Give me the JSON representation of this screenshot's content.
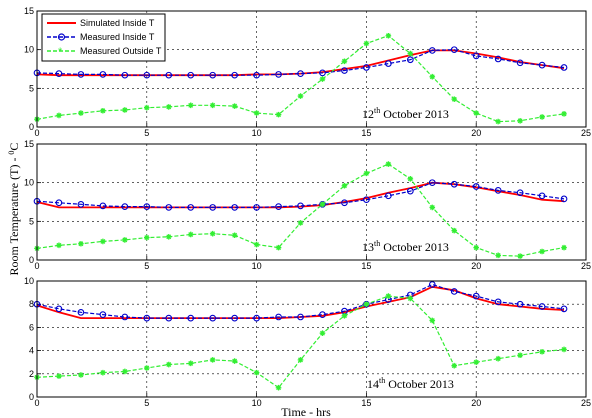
{
  "figure": {
    "ylabel_main": "Room Temperature (T) - ",
    "ylabel_sup": "0",
    "ylabel_unit": "C",
    "xlabel": "Time - hrs"
  },
  "legend": [
    "Simulated Inside T",
    "Measured Inside T",
    "Measured Outside T"
  ],
  "colors": {
    "simulated": "#ff0000",
    "measured_inside": "#0000cc",
    "measured_outside": "#33ee33"
  },
  "chart_data": [
    {
      "type": "line",
      "annotation": {
        "day": "12",
        "sup": "th",
        "rest": " October 2013"
      },
      "xlim": [
        0,
        25
      ],
      "ylim": [
        0,
        15
      ],
      "xticks": [
        0,
        5,
        10,
        15,
        20,
        25
      ],
      "yticks": [
        0,
        5,
        10,
        15
      ],
      "xtick_labels": [
        "0",
        "5",
        "10",
        "15",
        "20",
        "25"
      ],
      "ytick_labels": [
        "0",
        "5",
        "10",
        "15"
      ],
      "grid": true,
      "legend_position": "top-left",
      "series": [
        {
          "name": "Simulated Inside T",
          "x": [
            0,
            1,
            2,
            3,
            4,
            5,
            6,
            7,
            8,
            9,
            10,
            11,
            12,
            13,
            14,
            15,
            16,
            17,
            18,
            19,
            20,
            21,
            22,
            23,
            24
          ],
          "y": [
            6.8,
            6.7,
            6.7,
            6.7,
            6.7,
            6.7,
            6.7,
            6.7,
            6.7,
            6.7,
            6.8,
            6.8,
            6.9,
            7.1,
            7.5,
            7.9,
            8.6,
            9.3,
            9.9,
            9.9,
            9.5,
            9.0,
            8.4,
            8.0,
            7.6
          ]
        },
        {
          "name": "Measured Inside T",
          "x": [
            0,
            1,
            2,
            3,
            4,
            5,
            6,
            7,
            8,
            9,
            10,
            11,
            12,
            13,
            14,
            15,
            16,
            17,
            18,
            19,
            20,
            21,
            22,
            23,
            24
          ],
          "y": [
            7.0,
            6.9,
            6.8,
            6.8,
            6.7,
            6.7,
            6.7,
            6.7,
            6.7,
            6.7,
            6.7,
            6.8,
            6.9,
            7.0,
            7.3,
            7.7,
            8.2,
            8.7,
            9.9,
            10.0,
            9.2,
            8.8,
            8.3,
            8.0,
            7.7
          ]
        },
        {
          "name": "Measured Outside T",
          "x": [
            0,
            1,
            2,
            3,
            4,
            5,
            6,
            7,
            8,
            9,
            10,
            11,
            12,
            13,
            14,
            15,
            16,
            17,
            18,
            19,
            20,
            21,
            22,
            23,
            24
          ],
          "y": [
            1.0,
            1.5,
            1.8,
            2.1,
            2.2,
            2.5,
            2.6,
            2.8,
            2.8,
            2.7,
            1.8,
            1.6,
            4.0,
            6.2,
            8.5,
            10.8,
            11.8,
            9.5,
            6.5,
            3.6,
            1.8,
            0.7,
            0.8,
            1.3,
            1.7
          ]
        }
      ]
    },
    {
      "type": "line",
      "annotation": {
        "day": "13",
        "sup": "th",
        "rest": " October 2013"
      },
      "xlim": [
        0,
        25
      ],
      "ylim": [
        0,
        15
      ],
      "xticks": [
        0,
        5,
        10,
        15,
        20,
        25
      ],
      "yticks": [
        0,
        5,
        10,
        15
      ],
      "xtick_labels": [
        "0",
        "5",
        "10",
        "15",
        "20",
        "25"
      ],
      "ytick_labels": [
        "0",
        "5",
        "10",
        "15"
      ],
      "grid": true,
      "series": [
        {
          "name": "Simulated Inside T",
          "x": [
            0,
            1,
            2,
            3,
            4,
            5,
            6,
            7,
            8,
            9,
            10,
            11,
            12,
            13,
            14,
            15,
            16,
            17,
            18,
            19,
            20,
            21,
            22,
            23,
            24
          ],
          "y": [
            7.5,
            6.8,
            6.8,
            6.8,
            6.8,
            6.8,
            6.8,
            6.8,
            6.8,
            6.8,
            6.8,
            6.8,
            6.9,
            7.1,
            7.5,
            8.0,
            8.7,
            9.3,
            10.0,
            9.8,
            9.4,
            8.9,
            8.4,
            7.8,
            7.6
          ]
        },
        {
          "name": "Measured Inside T",
          "x": [
            0,
            1,
            2,
            3,
            4,
            5,
            6,
            7,
            8,
            9,
            10,
            11,
            12,
            13,
            14,
            15,
            16,
            17,
            18,
            19,
            20,
            21,
            22,
            23,
            24
          ],
          "y": [
            7.6,
            7.4,
            7.2,
            7.0,
            6.9,
            6.9,
            6.8,
            6.8,
            6.8,
            6.8,
            6.8,
            6.9,
            7.0,
            7.2,
            7.4,
            7.8,
            8.3,
            8.9,
            10.0,
            9.8,
            9.5,
            9.0,
            8.7,
            8.3,
            7.9
          ]
        },
        {
          "name": "Measured Outside T",
          "x": [
            0,
            1,
            2,
            3,
            4,
            5,
            6,
            7,
            8,
            9,
            10,
            11,
            12,
            13,
            14,
            15,
            16,
            17,
            18,
            19,
            20,
            21,
            22,
            23,
            24
          ],
          "y": [
            1.5,
            1.9,
            2.1,
            2.4,
            2.6,
            2.9,
            3.0,
            3.3,
            3.4,
            3.2,
            2.0,
            1.6,
            4.8,
            7.2,
            9.6,
            11.2,
            12.4,
            10.5,
            6.8,
            3.8,
            1.6,
            0.6,
            0.5,
            1.1,
            1.6
          ]
        }
      ]
    },
    {
      "type": "line",
      "annotation": {
        "day": "14",
        "sup": "th",
        "rest": " October 2013"
      },
      "xlim": [
        0,
        25
      ],
      "ylim": [
        0,
        10
      ],
      "xticks": [
        0,
        5,
        10,
        15,
        20,
        25
      ],
      "yticks": [
        0,
        2,
        4,
        6,
        8,
        10
      ],
      "xtick_labels": [
        "0",
        "5",
        "10",
        "15",
        "20",
        "25"
      ],
      "ytick_labels": [
        "0",
        "2",
        "4",
        "6",
        "8",
        "10"
      ],
      "grid": true,
      "series": [
        {
          "name": "Simulated Inside T",
          "x": [
            0,
            1,
            2,
            3,
            4,
            5,
            6,
            7,
            8,
            9,
            10,
            11,
            12,
            13,
            14,
            15,
            16,
            17,
            18,
            19,
            20,
            21,
            22,
            23,
            24
          ],
          "y": [
            7.9,
            7.3,
            6.8,
            6.8,
            6.8,
            6.8,
            6.8,
            6.8,
            6.8,
            6.8,
            6.8,
            6.8,
            6.9,
            7.0,
            7.3,
            7.8,
            8.2,
            8.6,
            9.5,
            9.2,
            8.5,
            8.0,
            7.8,
            7.6,
            7.5
          ]
        },
        {
          "name": "Measured Inside T",
          "x": [
            0,
            1,
            2,
            3,
            4,
            5,
            6,
            7,
            8,
            9,
            10,
            11,
            12,
            13,
            14,
            15,
            16,
            17,
            18,
            19,
            20,
            21,
            22,
            23,
            24
          ],
          "y": [
            8.0,
            7.6,
            7.3,
            7.1,
            6.9,
            6.8,
            6.8,
            6.8,
            6.8,
            6.8,
            6.8,
            6.9,
            6.9,
            7.1,
            7.4,
            8.0,
            8.4,
            8.8,
            9.7,
            9.1,
            8.7,
            8.2,
            8.0,
            7.8,
            7.6
          ]
        },
        {
          "name": "Measured Outside T",
          "x": [
            0,
            1,
            2,
            3,
            4,
            5,
            6,
            7,
            8,
            9,
            10,
            11,
            12,
            13,
            14,
            15,
            16,
            17,
            18,
            19,
            20,
            21,
            22,
            23,
            24
          ],
          "y": [
            1.7,
            1.8,
            1.9,
            2.1,
            2.2,
            2.5,
            2.8,
            2.9,
            3.2,
            3.1,
            2.1,
            0.8,
            3.2,
            5.5,
            7.0,
            8.0,
            8.7,
            8.5,
            6.6,
            2.7,
            3.0,
            3.3,
            3.6,
            3.9,
            4.1
          ]
        }
      ]
    }
  ]
}
